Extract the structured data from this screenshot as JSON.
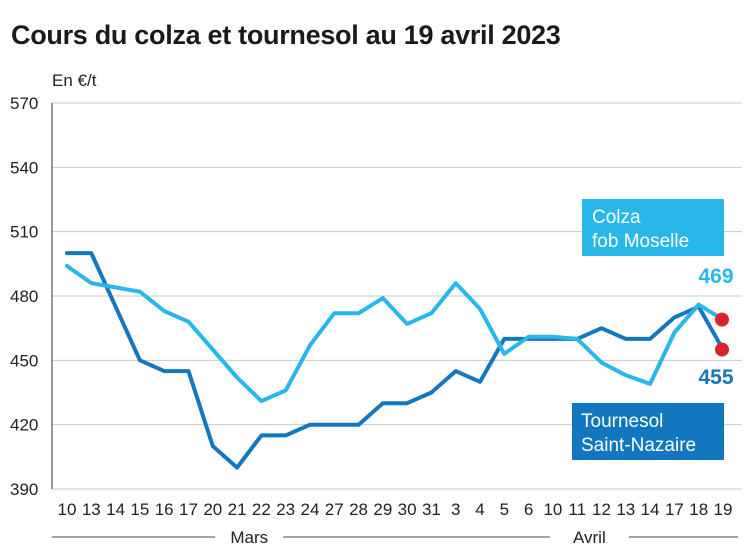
{
  "title": "Cours du colza et tournesol au 19 avril 2023",
  "chart_data": {
    "type": "line",
    "title": "Cours du colza et tournesol au 19 avril 2023",
    "ylabel": "En €/t",
    "ylim": [
      390,
      570
    ],
    "yticks": [
      390,
      420,
      450,
      480,
      510,
      540,
      570
    ],
    "grid": true,
    "categories": [
      "10",
      "13",
      "14",
      "15",
      "16",
      "17",
      "20",
      "21",
      "22",
      "23",
      "24",
      "27",
      "28",
      "29",
      "30",
      "31",
      "3",
      "4",
      "5",
      "6",
      "10",
      "11",
      "12",
      "13",
      "14",
      "17",
      "18",
      "19"
    ],
    "month_groups": [
      {
        "label": "Mars",
        "from": 0,
        "to": 15
      },
      {
        "label": "Avril",
        "from": 16,
        "to": 27
      }
    ],
    "series": [
      {
        "name": "Colza fob Moselle",
        "name_lines": [
          "Colza",
          "fob Moselle"
        ],
        "color": "#29b6e8",
        "values": [
          494,
          486,
          484,
          482,
          473,
          468,
          455,
          442,
          431,
          436,
          457,
          472,
          472,
          479,
          467,
          472,
          486,
          474,
          453,
          461,
          461,
          460,
          449,
          443,
          439,
          463,
          476,
          469
        ],
        "end_label": "469"
      },
      {
        "name": "Tournesol Saint-Nazaire",
        "name_lines": [
          "Tournesol",
          "Saint-Nazaire"
        ],
        "color": "#1377bf",
        "values": [
          500,
          500,
          475,
          450,
          445,
          445,
          410,
          400,
          415,
          415,
          420,
          420,
          420,
          430,
          430,
          435,
          445,
          440,
          460,
          460,
          460,
          460,
          465,
          460,
          460,
          470,
          475,
          455
        ],
        "end_label": "455"
      }
    ],
    "end_marker_color": "#d8232a"
  }
}
